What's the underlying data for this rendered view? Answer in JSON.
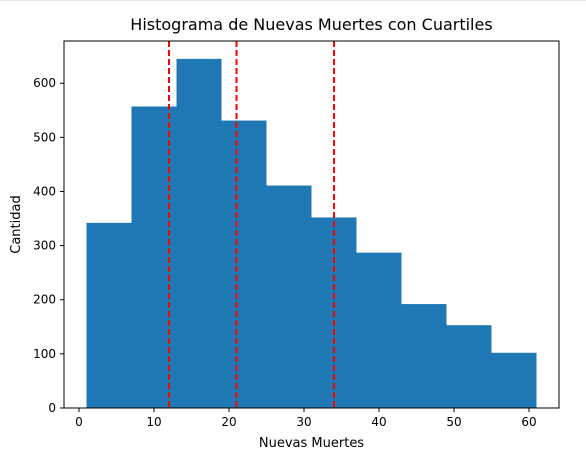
{
  "chart_data": {
    "type": "bar",
    "title": "Histograma de Nuevas Muertes con Cuartiles",
    "xlabel": "Nuevas Muertes",
    "ylabel": "Cantidad",
    "bins": [
      {
        "x0": 1,
        "x1": 7,
        "count": 342
      },
      {
        "x0": 7,
        "x1": 13,
        "count": 557
      },
      {
        "x0": 13,
        "x1": 19,
        "count": 645
      },
      {
        "x0": 19,
        "x1": 25,
        "count": 531
      },
      {
        "x0": 25,
        "x1": 31,
        "count": 411
      },
      {
        "x0": 31,
        "x1": 37,
        "count": 352
      },
      {
        "x0": 37,
        "x1": 43,
        "count": 287
      },
      {
        "x0": 43,
        "x1": 49,
        "count": 192
      },
      {
        "x0": 49,
        "x1": 55,
        "count": 153
      },
      {
        "x0": 55,
        "x1": 61,
        "count": 102
      }
    ],
    "quartile_lines": [
      12,
      21,
      34
    ],
    "xlim": [
      -2,
      64
    ],
    "ylim": [
      0,
      678
    ],
    "xticks": [
      0,
      10,
      20,
      30,
      40,
      50,
      60
    ],
    "yticks": [
      0,
      100,
      200,
      300,
      400,
      500,
      600
    ],
    "bar_color": "#1f77b4",
    "line_color": "#ff0000",
    "grid": false,
    "legend": false
  }
}
